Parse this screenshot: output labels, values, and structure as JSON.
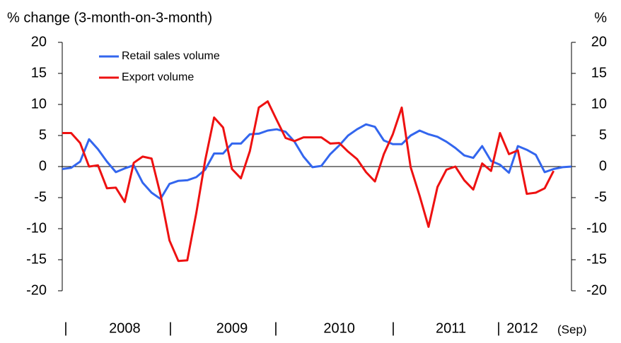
{
  "chart_data": {
    "type": "line",
    "title": "% change (3-month-on-3-month)",
    "y2_label": "%",
    "year_labels": [
      "2008",
      "2009",
      "2010",
      "2011",
      "2012"
    ],
    "annotation": "(Sep)",
    "ylim": [
      -20,
      20
    ],
    "yticks": [
      20,
      15,
      10,
      5,
      0,
      -5,
      -10,
      -15,
      -20
    ],
    "y2lim": [
      -20,
      20
    ],
    "y2ticks": [
      20,
      15,
      10,
      5,
      0,
      -5,
      -10,
      -15,
      -20
    ],
    "series": [
      {
        "name": "Retail sales volume",
        "color": "#3366ee",
        "values": [
          -0.4,
          -0.2,
          0.8,
          4.4,
          2.8,
          0.8,
          -0.9,
          -0.3,
          0.2,
          -2.6,
          -4.2,
          -5.2,
          -2.8,
          -2.3,
          -2.2,
          -1.7,
          -0.5,
          2.1,
          2.1,
          3.7,
          3.7,
          5.2,
          5.3,
          5.8,
          6.0,
          5.6,
          4.0,
          1.6,
          -0.1,
          0.1,
          2.0,
          3.4,
          5.0,
          6.0,
          6.8,
          6.4,
          4.2,
          3.6,
          3.6,
          5.0,
          5.8,
          5.2,
          4.8,
          4.0,
          3.0,
          1.8,
          1.4,
          3.3,
          0.9,
          0.3,
          -1.0,
          3.3,
          2.7,
          1.9,
          -0.9,
          -0.4,
          -0.1,
          0.0
        ]
      },
      {
        "name": "Export volume",
        "color": "#ee1111",
        "values": [
          5.4,
          5.4,
          3.8,
          0.0,
          0.2,
          -3.5,
          -3.4,
          -5.7,
          0.6,
          1.6,
          1.3,
          -4.5,
          -11.9,
          -15.2,
          -15.1,
          -7.5,
          1.0,
          7.9,
          6.3,
          -0.4,
          -1.9,
          2.5,
          9.5,
          10.5,
          7.5,
          4.6,
          4.1,
          4.7,
          4.7,
          4.7,
          3.7,
          3.8,
          2.4,
          1.2,
          -0.9,
          -2.4,
          2.0,
          5.2,
          9.5,
          -0.1,
          -4.7,
          -9.7,
          -3.3,
          -0.5,
          0.0,
          -2.2,
          -3.7,
          0.5,
          -0.7,
          5.4,
          2.0,
          2.6,
          -4.4,
          -4.2,
          -3.5,
          -0.7,
          null,
          null
        ]
      }
    ]
  }
}
